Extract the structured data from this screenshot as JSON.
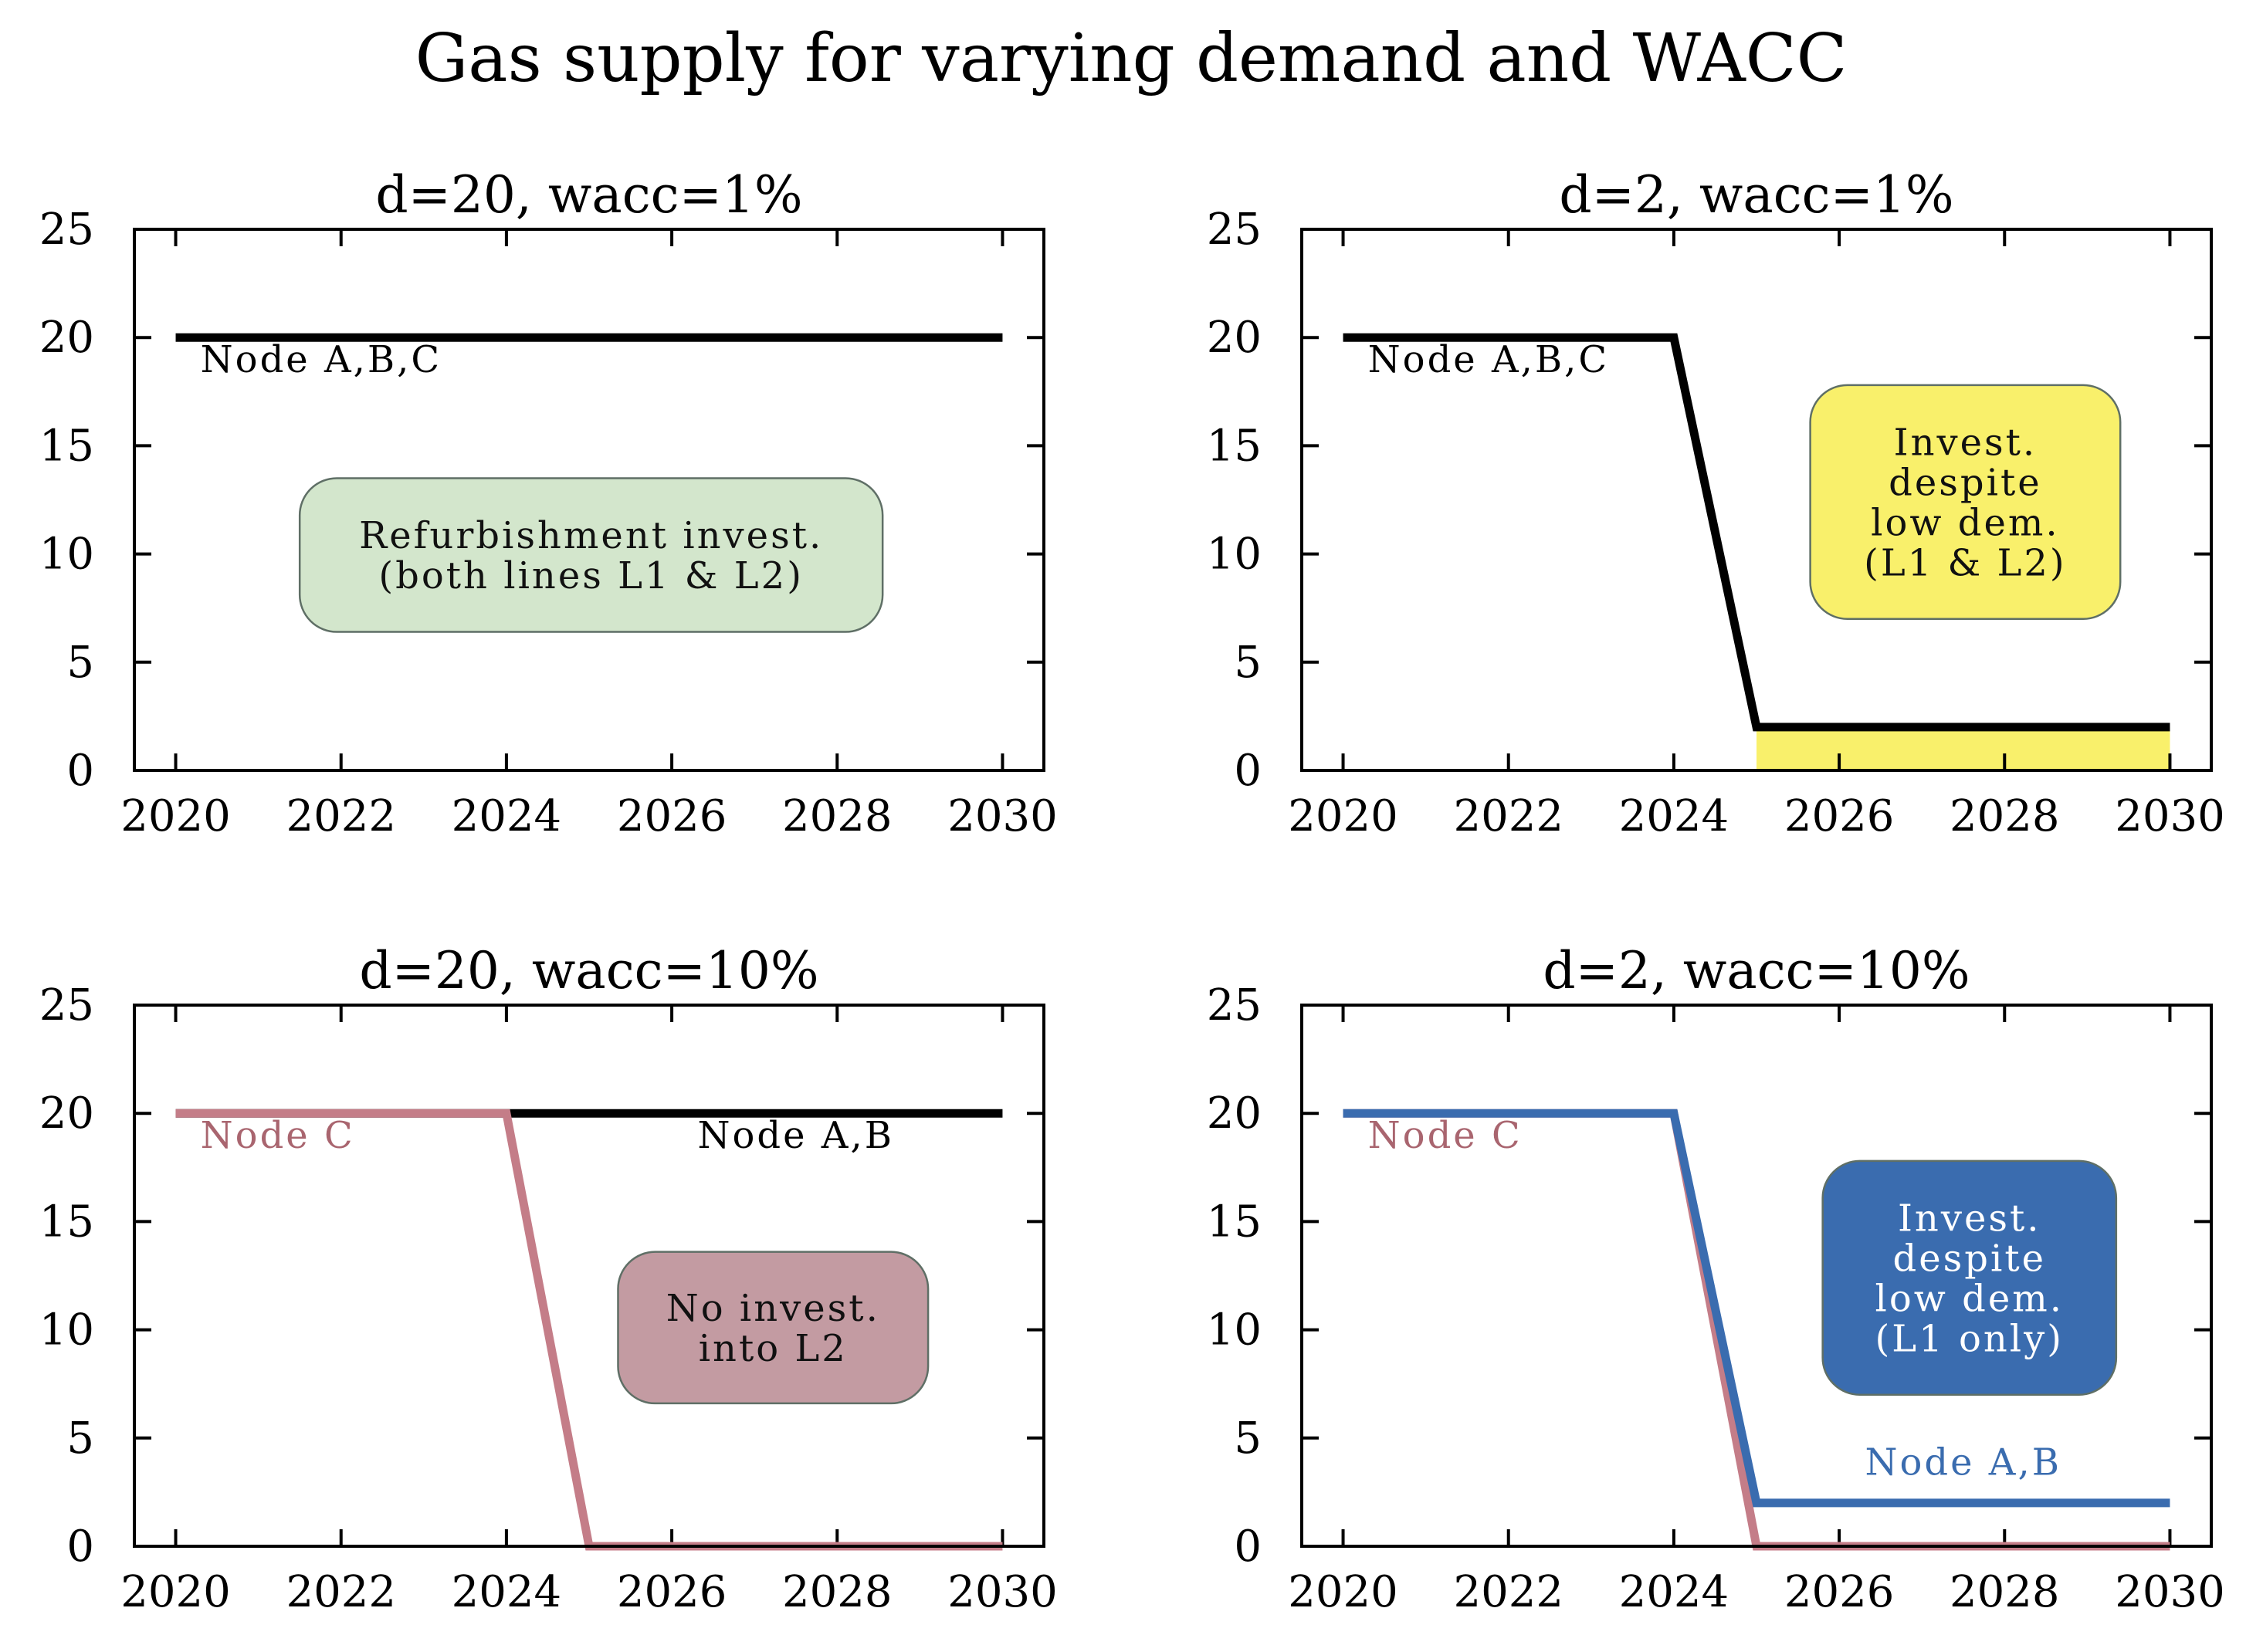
{
  "title": "Gas supply for varying demand and WACC",
  "chart_data": [
    {
      "type": "line",
      "title": "d=20, wacc=1%",
      "xlim": [
        2019.5,
        2030.5
      ],
      "ylim": [
        0,
        25
      ],
      "xticks": [
        2020,
        2022,
        2024,
        2026,
        2028,
        2030
      ],
      "yticks": [
        0,
        5,
        10,
        15,
        20,
        25
      ],
      "series": [
        {
          "color": "#000000",
          "x": [
            2020,
            2030
          ],
          "y": [
            20,
            20
          ]
        }
      ],
      "labels": [
        {
          "text": "Node A,B,C",
          "color": "#000000",
          "x": 2020.3,
          "y": 18.4,
          "anchor": "start"
        }
      ],
      "box": {
        "lines": [
          "Refurbishment invest.",
          "(both lines L1 & L2)"
        ],
        "fill": "#d3e6cc",
        "text_color": "#111111",
        "x0": 2021.5,
        "x1": 2028.55,
        "y0": 6.4,
        "y1": 13.5
      },
      "fill_area": null
    },
    {
      "type": "line",
      "title": "d=2, wacc=1%",
      "xlim": [
        2019.5,
        2030.5
      ],
      "ylim": [
        0,
        25
      ],
      "xticks": [
        2020,
        2022,
        2024,
        2026,
        2028,
        2030
      ],
      "yticks": [
        0,
        5,
        10,
        15,
        20,
        25
      ],
      "series": [
        {
          "color": "#000000",
          "x": [
            2020,
            2024,
            2025,
            2030
          ],
          "y": [
            20,
            20,
            2,
            2
          ]
        }
      ],
      "labels": [
        {
          "text": "Node A,B,C",
          "color": "#000000",
          "x": 2020.3,
          "y": 18.4,
          "anchor": "start"
        }
      ],
      "box": {
        "lines": [
          "Invest.",
          "despite",
          "low dem.",
          "(L1 & L2)"
        ],
        "fill": "#f9f06b",
        "text_color": "#111111",
        "x0": 2025.65,
        "x1": 2029.4,
        "y0": 7.0,
        "y1": 17.8
      },
      "fill_area": {
        "x": [
          2025,
          2030
        ],
        "y": [
          0,
          2
        ],
        "color": "#f9f06b"
      }
    },
    {
      "type": "line",
      "title": "d=20, wacc=10%",
      "xlim": [
        2019.5,
        2030.5
      ],
      "ylim": [
        0,
        25
      ],
      "xticks": [
        2020,
        2022,
        2024,
        2026,
        2028,
        2030
      ],
      "yticks": [
        0,
        5,
        10,
        15,
        20,
        25
      ],
      "series": [
        {
          "color": "#000000",
          "x": [
            2020,
            2030
          ],
          "y": [
            20,
            20
          ]
        },
        {
          "color": "#c47d88",
          "x": [
            2020,
            2024,
            2025,
            2030
          ],
          "y": [
            20,
            20,
            0,
            0
          ]
        }
      ],
      "labels": [
        {
          "text": "Node C",
          "color": "#a9656f",
          "x": 2020.3,
          "y": 18.4,
          "anchor": "start"
        },
        {
          "text": "Node A,B",
          "color": "#000000",
          "x": 2027.5,
          "y": 18.4,
          "anchor": "middle"
        }
      ],
      "box": {
        "lines": [
          "No invest.",
          "into L2"
        ],
        "fill": "#c39ba2",
        "text_color": "#111111",
        "x0": 2025.35,
        "x1": 2029.1,
        "y0": 6.6,
        "y1": 13.6
      },
      "fill_area": null
    },
    {
      "type": "line",
      "title": "d=2, wacc=10%",
      "xlim": [
        2019.5,
        2030.5
      ],
      "ylim": [
        0,
        25
      ],
      "xticks": [
        2020,
        2022,
        2024,
        2026,
        2028,
        2030
      ],
      "yticks": [
        0,
        5,
        10,
        15,
        20,
        25
      ],
      "series": [
        {
          "color": "#c47d88",
          "x": [
            2020,
            2024,
            2025,
            2030
          ],
          "y": [
            20,
            20,
            0,
            0
          ]
        },
        {
          "color": "#3a6caf",
          "x": [
            2020,
            2024,
            2025,
            2030
          ],
          "y": [
            20,
            20,
            2,
            2
          ]
        }
      ],
      "labels": [
        {
          "text": "Node C",
          "color": "#a9656f",
          "x": 2020.3,
          "y": 18.4,
          "anchor": "start"
        },
        {
          "text": "Node A,B",
          "color": "#3a6caf",
          "x": 2027.5,
          "y": 3.3,
          "anchor": "middle"
        }
      ],
      "box": {
        "lines": [
          "Invest.",
          "despite",
          "low dem.",
          "(L1 only)"
        ],
        "fill": "#3a6caf",
        "text_color": "#ffffff",
        "x0": 2025.8,
        "x1": 2029.35,
        "y0": 7.0,
        "y1": 17.8
      },
      "fill_area": null
    }
  ]
}
